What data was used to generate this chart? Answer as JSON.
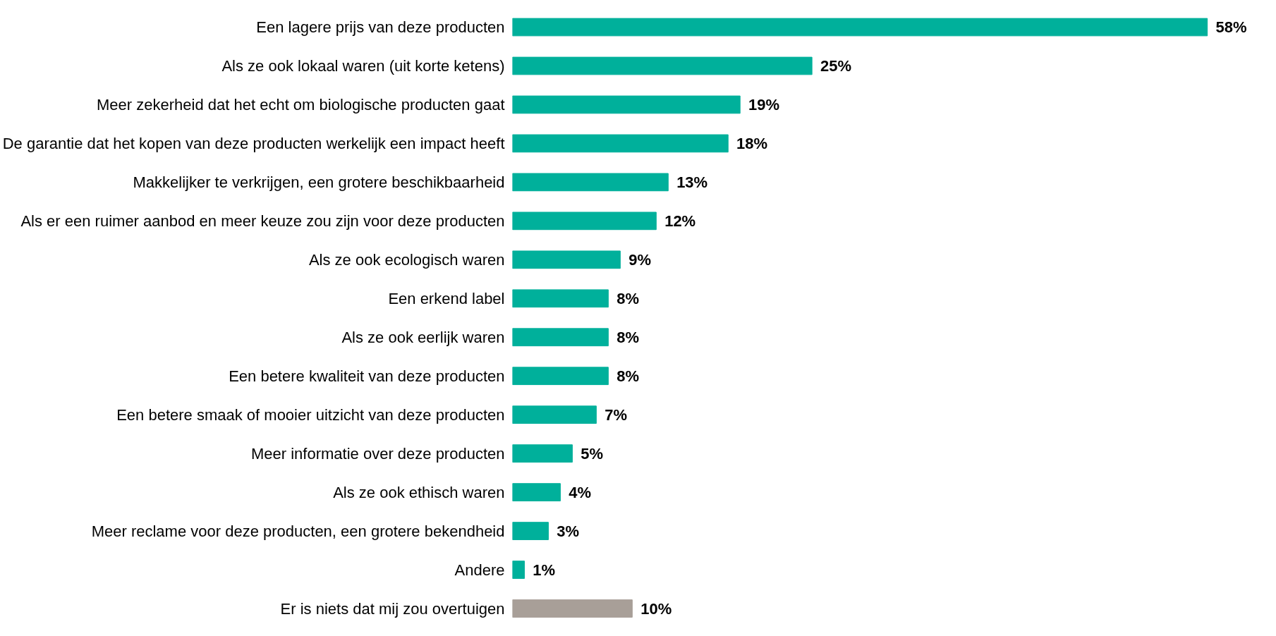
{
  "chart_data": {
    "type": "bar",
    "orientation": "horizontal",
    "categories": [
      "Een lagere prijs van deze producten",
      "Als ze ook lokaal waren (uit korte ketens)",
      "Meer zekerheid dat het echt om biologische producten gaat",
      "De garantie dat het kopen van deze producten werkelijk een impact heeft",
      "Makkelijker te verkrijgen, een grotere beschikbaarheid",
      "Als er een ruimer aanbod en meer keuze zou zijn voor deze producten",
      "Als ze ook ecologisch waren",
      "Een erkend label",
      "Als ze ook eerlijk waren",
      "Een betere kwaliteit van deze producten",
      "Een betere smaak of mooier uitzicht van deze producten",
      "Meer informatie over deze producten",
      "Als ze ook ethisch waren",
      "Meer reclame voor deze producten, een grotere bekendheid",
      "Andere",
      "Er is niets dat mij zou overtuigen"
    ],
    "values": [
      58,
      25,
      19,
      18,
      13,
      12,
      9,
      8,
      8,
      8,
      7,
      5,
      4,
      3,
      1,
      10
    ],
    "colors": [
      "#00b09b",
      "#00b09b",
      "#00b09b",
      "#00b09b",
      "#00b09b",
      "#00b09b",
      "#00b09b",
      "#00b09b",
      "#00b09b",
      "#00b09b",
      "#00b09b",
      "#00b09b",
      "#00b09b",
      "#00b09b",
      "#00b09b",
      "#a89f98"
    ],
    "value_labels": [
      "58%",
      "25%",
      "19%",
      "18%",
      "13%",
      "12%",
      "9%",
      "8%",
      "8%",
      "8%",
      "7%",
      "5%",
      "4%",
      "3%",
      "1%",
      "10%"
    ],
    "grid": false
  }
}
